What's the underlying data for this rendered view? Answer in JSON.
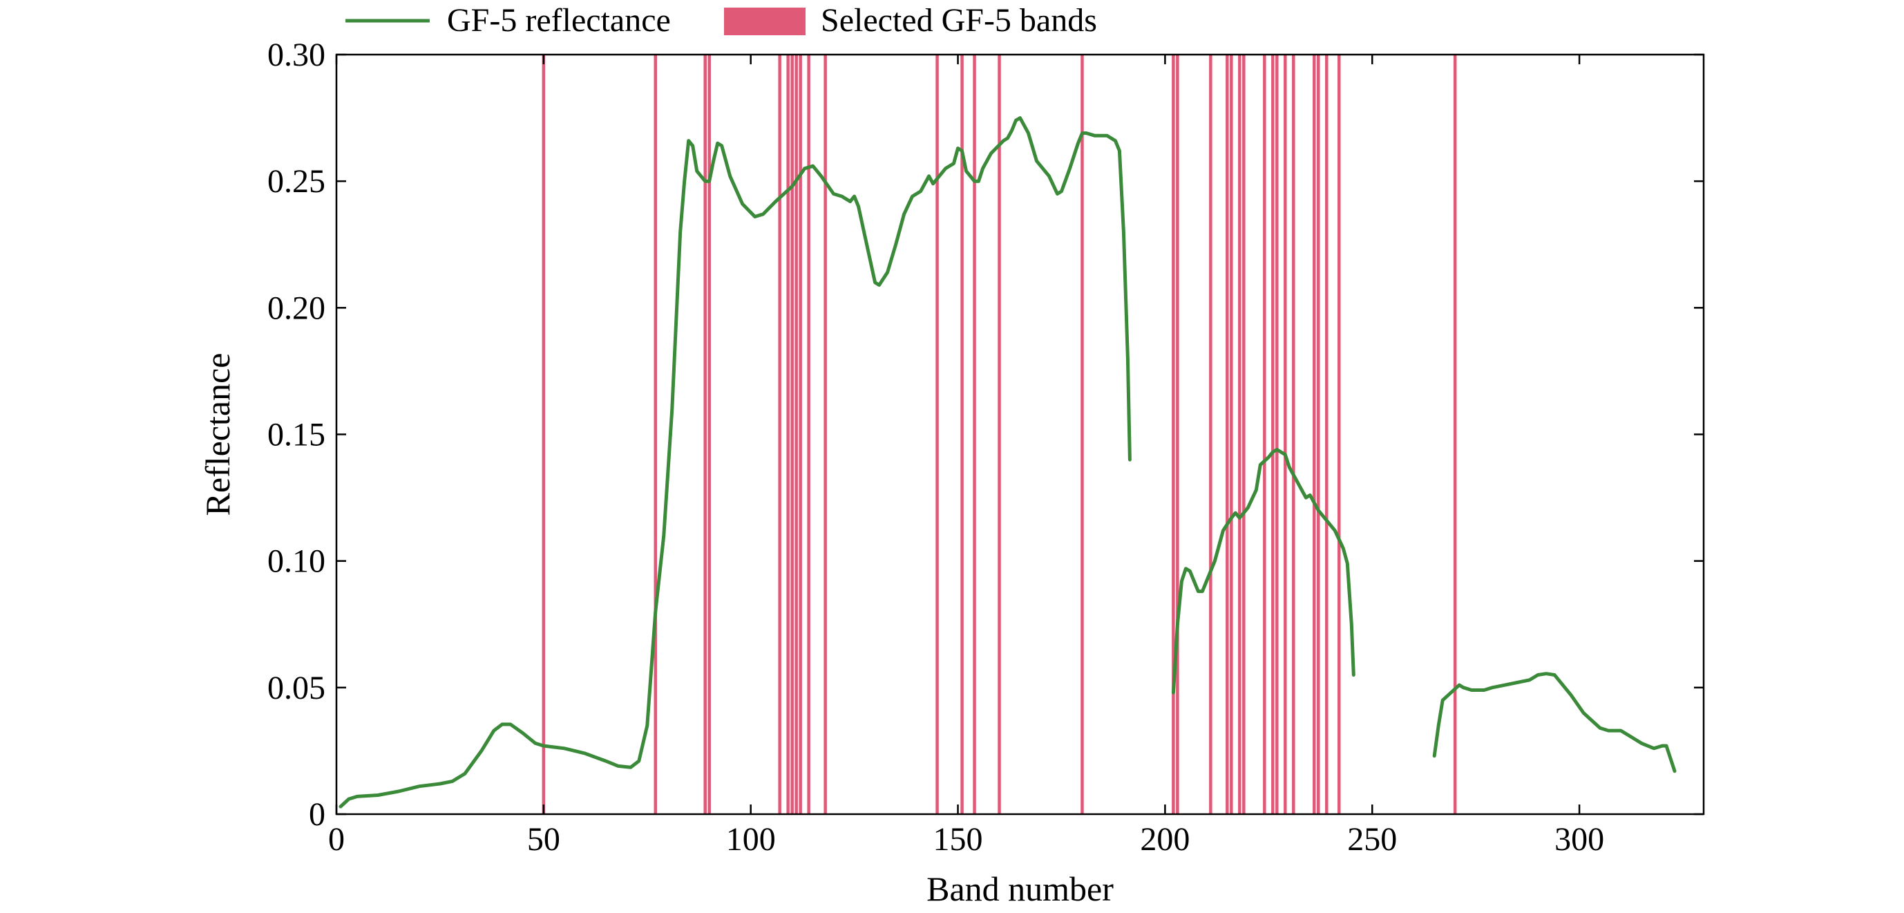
{
  "chart_data": {
    "type": "line",
    "title": "",
    "xlabel": "Band number",
    "ylabel": "Reflectance",
    "xlim": [
      0,
      330
    ],
    "ylim": [
      0,
      0.3
    ],
    "x_ticks": [
      0,
      50,
      100,
      150,
      200,
      250,
      300
    ],
    "x_tick_labels": [
      "0",
      "50",
      "100",
      "150",
      "200",
      "250",
      "300"
    ],
    "y_ticks": [
      0,
      0.05,
      0.1,
      0.15,
      0.2,
      0.25,
      0.3
    ],
    "y_tick_labels": [
      "0",
      "0.05",
      "0.10",
      "0.15",
      "0.20",
      "0.25",
      "0.30"
    ],
    "grid": false,
    "legend_position": "top",
    "colors": {
      "line": "#3a8a3a",
      "bands": "#e05a78"
    },
    "series": [
      {
        "name": "GF-5 reflectance",
        "segments": [
          [
            [
              1,
              0.003
            ],
            [
              3,
              0.006
            ],
            [
              5,
              0.007
            ],
            [
              10,
              0.0075
            ],
            [
              15,
              0.009
            ],
            [
              20,
              0.011
            ],
            [
              25,
              0.012
            ],
            [
              28,
              0.013
            ],
            [
              31,
              0.016
            ],
            [
              35,
              0.025
            ],
            [
              38,
              0.033
            ],
            [
              40,
              0.0355
            ],
            [
              42,
              0.0355
            ],
            [
              45,
              0.032
            ],
            [
              48,
              0.028
            ],
            [
              50,
              0.027
            ],
            [
              55,
              0.026
            ],
            [
              60,
              0.024
            ],
            [
              65,
              0.021
            ],
            [
              68,
              0.019
            ],
            [
              71,
              0.0185
            ],
            [
              73,
              0.021
            ],
            [
              75,
              0.035
            ],
            [
              77,
              0.08
            ],
            [
              79,
              0.11
            ],
            [
              81,
              0.16
            ],
            [
              83,
              0.23
            ],
            [
              84,
              0.25
            ],
            [
              85,
              0.266
            ],
            [
              86,
              0.264
            ],
            [
              87,
              0.254
            ],
            [
              89,
              0.25
            ],
            [
              90,
              0.25
            ],
            [
              91,
              0.258
            ],
            [
              92,
              0.265
            ],
            [
              93,
              0.264
            ],
            [
              95,
              0.252
            ],
            [
              98,
              0.241
            ],
            [
              101,
              0.236
            ],
            [
              103,
              0.237
            ],
            [
              106,
              0.242
            ],
            [
              110,
              0.248
            ],
            [
              113,
              0.255
            ],
            [
              115,
              0.256
            ],
            [
              117,
              0.252
            ],
            [
              120,
              0.245
            ],
            [
              122,
              0.244
            ],
            [
              124,
              0.242
            ],
            [
              125,
              0.244
            ],
            [
              126,
              0.24
            ],
            [
              128,
              0.225
            ],
            [
              130,
              0.21
            ],
            [
              131,
              0.209
            ],
            [
              133,
              0.214
            ],
            [
              135,
              0.225
            ],
            [
              137,
              0.237
            ],
            [
              139,
              0.244
            ],
            [
              141,
              0.246
            ],
            [
              143,
              0.252
            ],
            [
              144,
              0.249
            ],
            [
              147,
              0.255
            ],
            [
              149,
              0.257
            ],
            [
              150,
              0.263
            ],
            [
              151,
              0.262
            ],
            [
              152,
              0.254
            ],
            [
              154,
              0.25
            ],
            [
              155,
              0.25
            ],
            [
              156,
              0.255
            ],
            [
              158,
              0.261
            ],
            [
              161,
              0.266
            ],
            [
              162,
              0.267
            ],
            [
              163,
              0.27
            ],
            [
              164,
              0.274
            ],
            [
              165,
              0.275
            ],
            [
              167,
              0.269
            ],
            [
              169,
              0.258
            ],
            [
              171,
              0.254
            ],
            [
              172,
              0.252
            ],
            [
              174,
              0.245
            ],
            [
              175,
              0.246
            ],
            [
              177,
              0.255
            ],
            [
              179,
              0.265
            ],
            [
              180,
              0.269
            ],
            [
              181,
              0.269
            ],
            [
              183,
              0.268
            ],
            [
              186,
              0.268
            ],
            [
              188,
              0.266
            ],
            [
              189,
              0.262
            ],
            [
              190,
              0.23
            ],
            [
              191,
              0.18
            ],
            [
              191.5,
              0.14
            ]
          ],
          [
            [
              202,
              0.048
            ],
            [
              203,
              0.075
            ],
            [
              204,
              0.092
            ],
            [
              205,
              0.097
            ],
            [
              206,
              0.096
            ],
            [
              207,
              0.092
            ],
            [
              208,
              0.088
            ],
            [
              209,
              0.088
            ],
            [
              210,
              0.092
            ],
            [
              212,
              0.1
            ],
            [
              214,
              0.112
            ],
            [
              216,
              0.117
            ],
            [
              217,
              0.119
            ],
            [
              218,
              0.117
            ],
            [
              220,
              0.121
            ],
            [
              222,
              0.128
            ],
            [
              223,
              0.138
            ],
            [
              225,
              0.141
            ],
            [
              226,
              0.143
            ],
            [
              227,
              0.144
            ],
            [
              229,
              0.142
            ],
            [
              230,
              0.137
            ],
            [
              232,
              0.131
            ],
            [
              234,
              0.125
            ],
            [
              235,
              0.126
            ],
            [
              237,
              0.12
            ],
            [
              239,
              0.116
            ],
            [
              241,
              0.112
            ],
            [
              243,
              0.105
            ],
            [
              244,
              0.099
            ],
            [
              245,
              0.075
            ],
            [
              245.5,
              0.055
            ]
          ],
          [
            [
              265,
              0.023
            ],
            [
              266,
              0.035
            ],
            [
              267,
              0.045
            ],
            [
              269,
              0.048
            ],
            [
              271,
              0.051
            ],
            [
              272,
              0.05
            ],
            [
              274,
              0.049
            ],
            [
              277,
              0.049
            ],
            [
              279,
              0.05
            ],
            [
              282,
              0.051
            ],
            [
              285,
              0.052
            ],
            [
              288,
              0.053
            ],
            [
              290,
              0.055
            ],
            [
              292,
              0.0555
            ],
            [
              294,
              0.055
            ],
            [
              295,
              0.053
            ],
            [
              298,
              0.047
            ],
            [
              301,
              0.04
            ],
            [
              303,
              0.037
            ],
            [
              305,
              0.034
            ],
            [
              307,
              0.033
            ],
            [
              310,
              0.033
            ],
            [
              312,
              0.031
            ],
            [
              315,
              0.028
            ],
            [
              318,
              0.026
            ],
            [
              320,
              0.027
            ],
            [
              321,
              0.027
            ],
            [
              322,
              0.022
            ],
            [
              323,
              0.017
            ]
          ]
        ]
      },
      {
        "name": "Selected GF-5 bands",
        "bands": [
          50,
          77,
          89,
          90,
          107,
          109,
          110,
          111,
          112,
          114,
          118,
          145,
          151,
          154,
          160,
          180,
          202,
          203,
          211,
          215,
          216,
          218,
          219,
          224,
          226,
          227,
          229,
          231,
          236,
          237,
          239,
          242,
          270
        ]
      }
    ]
  }
}
